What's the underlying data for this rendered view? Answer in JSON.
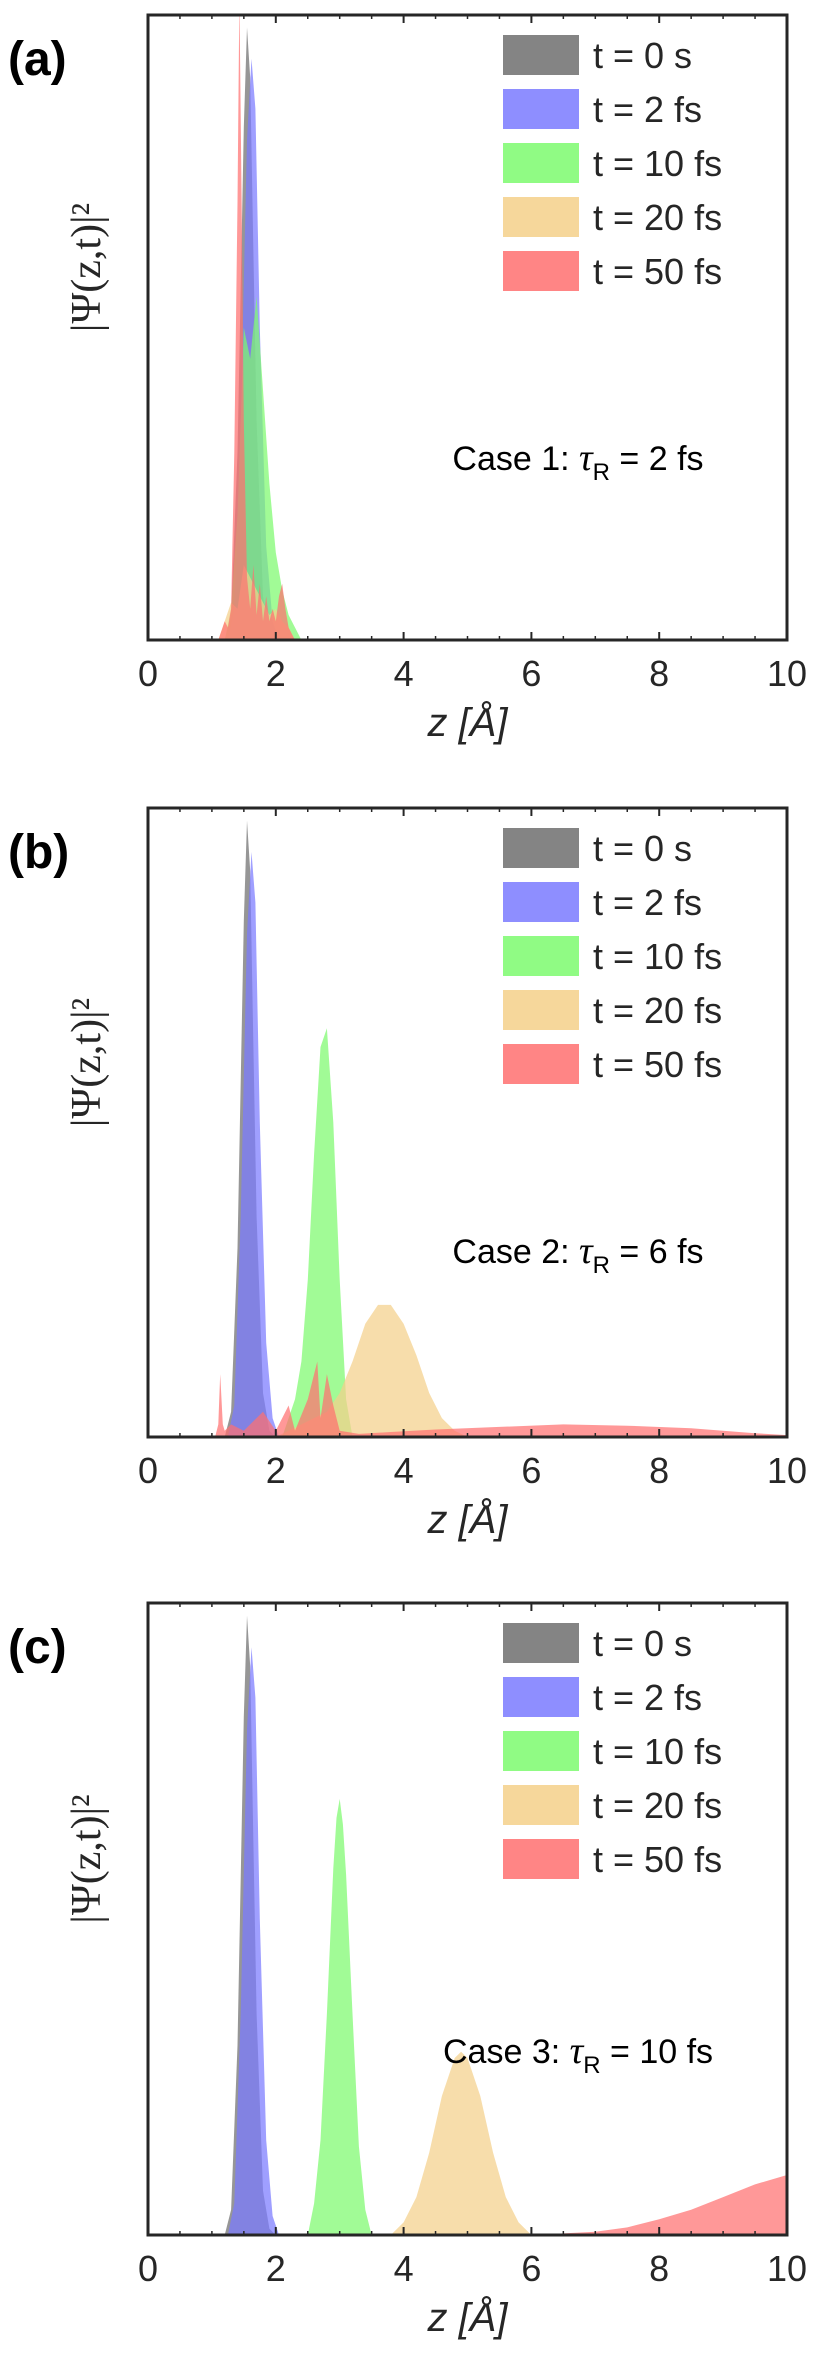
{
  "chart_data": [
    {
      "type": "area",
      "panel_label": "(a)",
      "annotation": {
        "prefix": "Case 1: ",
        "symbol": "τ",
        "subscript": "R",
        "suffix": " = 2 fs"
      },
      "xlabel": "z [Å]",
      "ylabel": "|Ψ(z,t)|²",
      "xlim": [
        0,
        10
      ],
      "ylim": [
        0,
        1
      ],
      "x_ticks": [
        "0",
        "2",
        "4",
        "6",
        "8",
        "10"
      ],
      "legend": [
        "t = 0 s",
        "t = 2 fs",
        "t = 10 fs",
        "t = 20 fs",
        "t = 50 fs"
      ],
      "series": [
        {
          "name": "t = 0 s",
          "color": "#6e6e6e",
          "z": [
            1.2,
            1.3,
            1.4,
            1.5,
            1.55,
            1.6,
            1.65,
            1.7,
            1.8,
            1.9,
            2.0
          ],
          "values": [
            0,
            0.04,
            0.3,
            0.82,
            0.98,
            0.9,
            0.62,
            0.35,
            0.07,
            0.01,
            0
          ]
        },
        {
          "name": "t = 2 fs",
          "color": "#7a7aff",
          "z": [
            1.25,
            1.35,
            1.45,
            1.55,
            1.62,
            1.68,
            1.75,
            1.85,
            1.95,
            2.05
          ],
          "values": [
            0,
            0.05,
            0.35,
            0.8,
            0.93,
            0.85,
            0.5,
            0.15,
            0.03,
            0
          ]
        },
        {
          "name": "t = 10 fs",
          "color": "#7dfa6e",
          "z": [
            1.2,
            1.3,
            1.4,
            1.5,
            1.6,
            1.7,
            1.8,
            1.9,
            2.0,
            2.1,
            2.2,
            2.3,
            2.4
          ],
          "values": [
            0,
            0.05,
            0.2,
            0.5,
            0.45,
            0.55,
            0.4,
            0.25,
            0.14,
            0.08,
            0.04,
            0.02,
            0
          ]
        },
        {
          "name": "t = 20 fs",
          "color": "#f4d08a",
          "z": [
            1.1,
            1.2,
            1.3,
            1.4,
            1.5,
            1.6,
            1.7,
            1.8,
            1.9,
            2.0,
            2.1,
            2.2,
            2.3
          ],
          "values": [
            0,
            0.03,
            0.06,
            0.05,
            0.12,
            0.1,
            0.08,
            0.06,
            0.04,
            0.05,
            0.03,
            0.02,
            0
          ]
        },
        {
          "name": "t = 50 fs",
          "color": "#ff7070",
          "z": [
            1.1,
            1.2,
            1.25,
            1.3,
            1.35,
            1.4,
            1.43,
            1.46,
            1.5,
            1.55,
            1.6,
            1.65,
            1.7,
            1.75,
            1.8,
            1.85,
            1.9,
            1.95,
            2.0,
            2.05,
            2.1,
            2.15,
            2.2,
            2.25,
            2.3
          ],
          "values": [
            0,
            0.03,
            0.02,
            0.05,
            0.3,
            0.7,
            1.03,
            0.75,
            0.35,
            0.1,
            0.05,
            0.12,
            0.04,
            0.09,
            0.03,
            0.07,
            0.03,
            0.05,
            0.03,
            0.07,
            0.09,
            0.05,
            0.02,
            0.01,
            0
          ]
        }
      ]
    },
    {
      "type": "area",
      "panel_label": "(b)",
      "annotation": {
        "prefix": "Case 2: ",
        "symbol": "τ",
        "subscript": "R",
        "suffix": " = 6 fs"
      },
      "xlabel": "z [Å]",
      "ylabel": "|Ψ(z,t)|²",
      "xlim": [
        0,
        10
      ],
      "ylim": [
        0,
        1
      ],
      "x_ticks": [
        "0",
        "2",
        "4",
        "6",
        "8",
        "10"
      ],
      "legend": [
        "t = 0 s",
        "t = 2 fs",
        "t = 10 fs",
        "t = 20 fs",
        "t = 50 fs"
      ],
      "series": [
        {
          "name": "t = 0 s",
          "color": "#6e6e6e",
          "z": [
            1.2,
            1.3,
            1.4,
            1.5,
            1.55,
            1.6,
            1.65,
            1.7,
            1.8,
            1.9,
            2.0
          ],
          "values": [
            0,
            0.04,
            0.3,
            0.82,
            0.98,
            0.9,
            0.62,
            0.35,
            0.07,
            0.01,
            0
          ]
        },
        {
          "name": "t = 2 fs",
          "color": "#7a7aff",
          "z": [
            1.25,
            1.35,
            1.45,
            1.55,
            1.62,
            1.68,
            1.75,
            1.85,
            1.95,
            2.05
          ],
          "values": [
            0,
            0.05,
            0.35,
            0.8,
            0.93,
            0.85,
            0.5,
            0.15,
            0.03,
            0
          ]
        },
        {
          "name": "t = 10 fs",
          "color": "#7dfa6e",
          "z": [
            2.1,
            2.2,
            2.3,
            2.4,
            2.5,
            2.6,
            2.7,
            2.8,
            2.9,
            3.0,
            3.1,
            3.2
          ],
          "values": [
            0,
            0.03,
            0.06,
            0.12,
            0.25,
            0.45,
            0.62,
            0.65,
            0.5,
            0.25,
            0.06,
            0
          ]
        },
        {
          "name": "t = 20 fs",
          "color": "#f4d08a",
          "z": [
            2.0,
            2.4,
            2.8,
            3.0,
            3.2,
            3.4,
            3.6,
            3.8,
            4.0,
            4.2,
            4.4,
            4.6,
            4.8,
            5.0
          ],
          "values": [
            0,
            0.02,
            0.04,
            0.07,
            0.12,
            0.18,
            0.21,
            0.21,
            0.18,
            0.13,
            0.07,
            0.03,
            0.01,
            0
          ]
        },
        {
          "name": "t = 50 fs",
          "color": "#ff7070",
          "z": [
            1.05,
            1.1,
            1.13,
            1.17,
            1.2,
            1.3,
            1.5,
            1.8,
            2.0,
            2.2,
            2.3,
            2.5,
            2.65,
            2.7,
            2.8,
            2.9,
            3.0,
            3.3,
            3.8,
            4.5,
            5.5,
            6.5,
            7.5,
            8.5,
            9.5,
            10.0
          ],
          "values": [
            0,
            0.02,
            0.1,
            0.02,
            0.01,
            0.02,
            0.01,
            0.04,
            0.01,
            0.05,
            0.01,
            0.06,
            0.12,
            0.03,
            0.1,
            0.05,
            0.01,
            0.005,
            0.008,
            0.012,
            0.016,
            0.02,
            0.018,
            0.014,
            0.006,
            0.003
          ]
        }
      ]
    },
    {
      "type": "area",
      "panel_label": "(c)",
      "annotation": {
        "prefix": "Case 3: ",
        "symbol": "τ",
        "subscript": "R",
        "suffix": " = 10 fs"
      },
      "xlabel": "z [Å]",
      "ylabel": "|Ψ(z,t)|²",
      "xlim": [
        0,
        10
      ],
      "ylim": [
        0,
        1
      ],
      "x_ticks": [
        "0",
        "2",
        "4",
        "6",
        "8",
        "10"
      ],
      "legend": [
        "t = 0 s",
        "t = 2 fs",
        "t = 10 fs",
        "t = 20 fs",
        "t = 50 fs"
      ],
      "series": [
        {
          "name": "t = 0 s",
          "color": "#6e6e6e",
          "z": [
            1.2,
            1.3,
            1.4,
            1.5,
            1.55,
            1.6,
            1.65,
            1.7,
            1.8,
            1.9,
            2.0
          ],
          "values": [
            0,
            0.04,
            0.3,
            0.82,
            0.98,
            0.9,
            0.62,
            0.35,
            0.07,
            0.01,
            0
          ]
        },
        {
          "name": "t = 2 fs",
          "color": "#7a7aff",
          "z": [
            1.25,
            1.35,
            1.45,
            1.55,
            1.62,
            1.68,
            1.75,
            1.85,
            1.95,
            2.05
          ],
          "values": [
            0,
            0.05,
            0.35,
            0.8,
            0.93,
            0.85,
            0.5,
            0.15,
            0.03,
            0
          ]
        },
        {
          "name": "t = 10 fs",
          "color": "#7dfa6e",
          "z": [
            2.5,
            2.6,
            2.7,
            2.8,
            2.9,
            2.95,
            3.0,
            3.05,
            3.1,
            3.2,
            3.3,
            3.4,
            3.5
          ],
          "values": [
            0,
            0.05,
            0.15,
            0.35,
            0.58,
            0.66,
            0.69,
            0.65,
            0.57,
            0.35,
            0.14,
            0.04,
            0
          ]
        },
        {
          "name": "t = 20 fs",
          "color": "#f4d08a",
          "z": [
            3.8,
            4.0,
            4.2,
            4.4,
            4.6,
            4.8,
            4.9,
            5.0,
            5.2,
            5.4,
            5.6,
            5.8,
            6.0
          ],
          "values": [
            0,
            0.02,
            0.06,
            0.13,
            0.22,
            0.28,
            0.29,
            0.28,
            0.22,
            0.13,
            0.06,
            0.02,
            0
          ]
        },
        {
          "name": "t = 50 fs",
          "color": "#ff7070",
          "z": [
            6.0,
            7.0,
            7.5,
            8.0,
            8.5,
            9.0,
            9.5,
            10.0
          ],
          "values": [
            0,
            0.005,
            0.012,
            0.025,
            0.04,
            0.06,
            0.08,
            0.095
          ]
        }
      ]
    }
  ]
}
